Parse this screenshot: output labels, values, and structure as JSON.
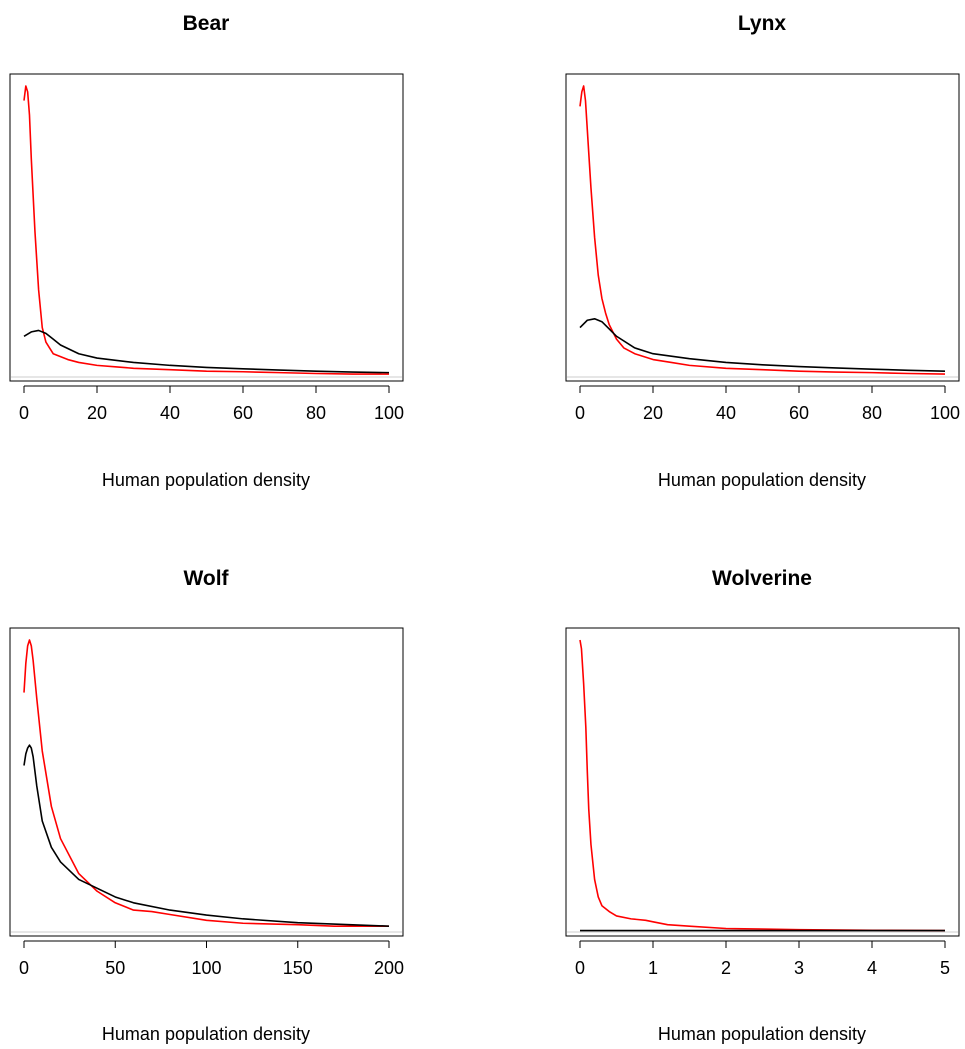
{
  "colors": {
    "background": "#ffffff",
    "red_series": "#ff0000",
    "black_series": "#000000",
    "baseline": "#cccccc",
    "frame": "#000000"
  },
  "chart_data": [
    {
      "type": "line",
      "title": "Bear",
      "xlabel": "Human population density",
      "ylabel": "",
      "xlim": [
        0,
        100
      ],
      "ylim": [
        0,
        1
      ],
      "xticks": [
        0,
        20,
        40,
        60,
        80,
        100
      ],
      "y_axis_ticks_shown": false,
      "baseline_y": 0,
      "series": [
        {
          "color": "#ff0000",
          "x": [
            0,
            0.5,
            1,
            1.5,
            2,
            3,
            4,
            5,
            6,
            7,
            8,
            10,
            12,
            15,
            20,
            25,
            30,
            40,
            50,
            60,
            70,
            80,
            90,
            100
          ],
          "y": [
            0.95,
            1.0,
            0.98,
            0.9,
            0.75,
            0.5,
            0.3,
            0.17,
            0.12,
            0.1,
            0.08,
            0.07,
            0.06,
            0.05,
            0.04,
            0.035,
            0.03,
            0.025,
            0.02,
            0.018,
            0.015,
            0.012,
            0.01,
            0.01
          ]
        },
        {
          "color": "#000000",
          "x": [
            0,
            2,
            4,
            6,
            8,
            10,
            15,
            20,
            30,
            40,
            50,
            60,
            70,
            80,
            90,
            100
          ],
          "y": [
            0.14,
            0.155,
            0.16,
            0.15,
            0.13,
            0.11,
            0.08,
            0.065,
            0.05,
            0.04,
            0.033,
            0.028,
            0.024,
            0.02,
            0.017,
            0.015
          ]
        }
      ]
    },
    {
      "type": "line",
      "title": "Lynx",
      "xlabel": "Human population density",
      "ylabel": "",
      "xlim": [
        0,
        100
      ],
      "ylim": [
        0,
        1
      ],
      "xticks": [
        0,
        20,
        40,
        60,
        80,
        100
      ],
      "y_axis_ticks_shown": false,
      "baseline_y": 0,
      "series": [
        {
          "color": "#ff0000",
          "x": [
            0,
            0.5,
            1,
            1.5,
            2,
            3,
            4,
            5,
            6,
            7,
            8,
            10,
            12,
            15,
            20,
            25,
            30,
            40,
            50,
            60,
            70,
            80,
            90,
            100
          ],
          "y": [
            0.93,
            0.98,
            1.0,
            0.95,
            0.85,
            0.65,
            0.48,
            0.35,
            0.27,
            0.22,
            0.18,
            0.13,
            0.1,
            0.08,
            0.06,
            0.05,
            0.04,
            0.03,
            0.025,
            0.02,
            0.017,
            0.015,
            0.012,
            0.01
          ]
        },
        {
          "color": "#000000",
          "x": [
            0,
            2,
            4,
            6,
            8,
            10,
            15,
            20,
            30,
            40,
            50,
            60,
            70,
            80,
            90,
            100
          ],
          "y": [
            0.17,
            0.195,
            0.2,
            0.19,
            0.165,
            0.14,
            0.1,
            0.08,
            0.063,
            0.05,
            0.042,
            0.036,
            0.031,
            0.027,
            0.023,
            0.02
          ]
        }
      ]
    },
    {
      "type": "line",
      "title": "Wolf",
      "xlabel": "Human population density",
      "ylabel": "",
      "xlim": [
        0,
        200
      ],
      "ylim": [
        0,
        1
      ],
      "xticks": [
        0,
        50,
        100,
        150,
        200
      ],
      "y_axis_ticks_shown": false,
      "baseline_y": 0,
      "series": [
        {
          "color": "#ff0000",
          "x": [
            0,
            1,
            2,
            3,
            4,
            5,
            7,
            10,
            15,
            20,
            30,
            40,
            50,
            60,
            70,
            80,
            100,
            120,
            150,
            170,
            200
          ],
          "y": [
            0.82,
            0.92,
            0.98,
            1.0,
            0.98,
            0.93,
            0.8,
            0.62,
            0.43,
            0.32,
            0.2,
            0.14,
            0.1,
            0.075,
            0.07,
            0.06,
            0.04,
            0.03,
            0.025,
            0.02,
            0.02
          ]
        },
        {
          "color": "#000000",
          "x": [
            0,
            1,
            2,
            3,
            4,
            5,
            7,
            10,
            15,
            20,
            30,
            40,
            50,
            60,
            80,
            100,
            120,
            150,
            200
          ],
          "y": [
            0.57,
            0.61,
            0.63,
            0.64,
            0.63,
            0.6,
            0.5,
            0.38,
            0.29,
            0.24,
            0.18,
            0.15,
            0.12,
            0.1,
            0.075,
            0.058,
            0.045,
            0.032,
            0.02
          ]
        }
      ]
    },
    {
      "type": "line",
      "title": "Wolverine",
      "xlabel": "Human population density",
      "ylabel": "",
      "xlim": [
        0,
        5
      ],
      "ylim": [
        0,
        1
      ],
      "xticks": [
        0,
        1,
        2,
        3,
        4,
        5
      ],
      "y_axis_ticks_shown": false,
      "baseline_y": 0,
      "series": [
        {
          "color": "#ff0000",
          "x": [
            0,
            0.02,
            0.05,
            0.08,
            0.1,
            0.12,
            0.15,
            0.2,
            0.25,
            0.3,
            0.4,
            0.5,
            0.7,
            0.9,
            1.0,
            1.2,
            1.5,
            2.0,
            2.5,
            3.0,
            4.0,
            5.0
          ],
          "y": [
            1.0,
            0.97,
            0.85,
            0.7,
            0.55,
            0.42,
            0.3,
            0.18,
            0.12,
            0.09,
            0.07,
            0.055,
            0.045,
            0.04,
            0.035,
            0.025,
            0.02,
            0.012,
            0.01,
            0.008,
            0.006,
            0.005
          ]
        },
        {
          "color": "#000000",
          "x": [
            0,
            1,
            2,
            3,
            4,
            5
          ],
          "y": [
            0.005,
            0.005,
            0.005,
            0.005,
            0.005,
            0.005
          ]
        }
      ]
    }
  ]
}
